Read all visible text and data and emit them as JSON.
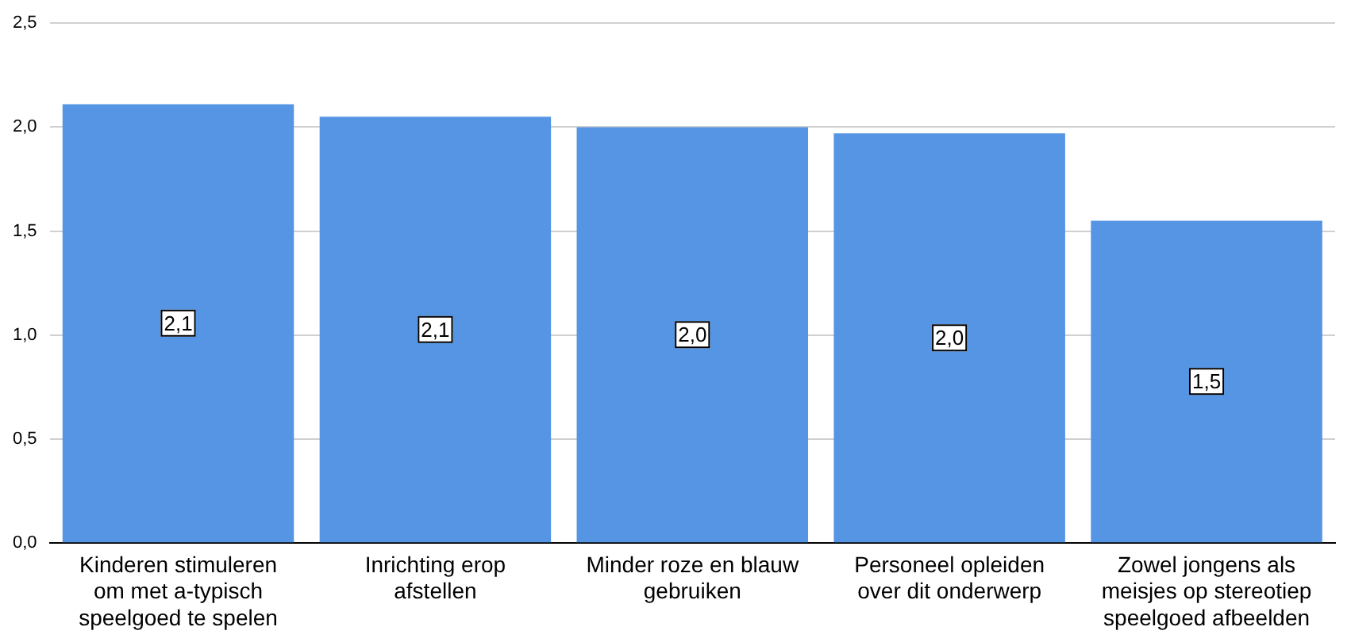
{
  "chart_data": {
    "type": "bar",
    "categories": [
      "Kinderen stimuleren om met a-typisch speelgoed te spelen",
      "Inrichting erop afstellen",
      "Minder roze en blauw gebruiken",
      "Personeel opleiden over dit onderwerp",
      "Zowel jongens als meisjes op stereotiep speelgoed afbeelden"
    ],
    "values": [
      2.11,
      2.05,
      2.0,
      1.97,
      1.55
    ],
    "value_labels": [
      "2,1",
      "2,1",
      "2,0",
      "2,0",
      "1,5"
    ],
    "color": "#5595e3",
    "ylim": [
      0,
      2.5
    ],
    "yticks": [
      {
        "value": 0,
        "label": "0,0"
      },
      {
        "value": 0.5,
        "label": "0,5"
      },
      {
        "value": 1,
        "label": "1,0"
      },
      {
        "value": 1.5,
        "label": "1,5"
      },
      {
        "value": 2,
        "label": "2,0"
      },
      {
        "value": 2.5,
        "label": "2,5"
      }
    ],
    "grid": "y"
  }
}
